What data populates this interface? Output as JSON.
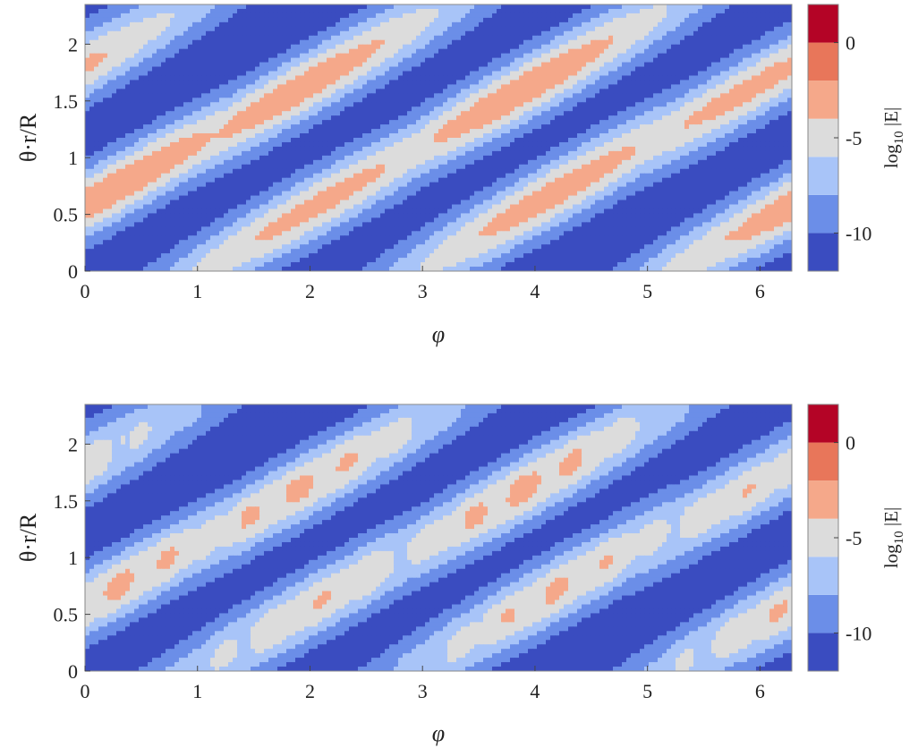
{
  "chart_data": [
    {
      "type": "heatmap",
      "subtype": "filled-contour",
      "title": "",
      "xlabel": "φ",
      "ylabel": "θ·r/R",
      "xlim": [
        0,
        6.2832
      ],
      "ylim": [
        0,
        2.35
      ],
      "x_ticks": [
        0,
        1,
        2,
        3,
        4,
        5,
        6
      ],
      "x_tick_labels": [
        "0",
        "1",
        "2",
        "3",
        "4",
        "5",
        "6"
      ],
      "y_ticks": [
        0,
        0.5,
        1,
        1.5,
        2
      ],
      "y_tick_labels": [
        "0",
        "0.5",
        "1",
        "1.5",
        "2"
      ],
      "colorbar": {
        "label": "log₁₀ |E|",
        "label_base": "log",
        "label_sub": "10",
        "label_tail": " |E|",
        "range": [
          -12,
          2
        ],
        "ticks": [
          0,
          -5,
          -10
        ],
        "tick_labels": [
          "0",
          "-5",
          "-10"
        ],
        "levels": [
          -12,
          -10,
          -8,
          -6,
          -4,
          -2,
          0,
          2
        ],
        "colors": [
          "#3a4cc0",
          "#6b8ee8",
          "#a8c4f8",
          "#dcdcdc",
          "#f5a88a",
          "#e8765a",
          "#b40426"
        ]
      },
      "field": {
        "description": "diagonal bands; level is log10|E|",
        "bands": [
          {
            "phi0": 0.3,
            "theta0": 0.75,
            "slope": 0.55,
            "peak": -2.2
          },
          {
            "phi0": 1.9,
            "theta0": 1.6,
            "slope": 0.55,
            "peak": -2.6
          },
          {
            "phi0": 2.1,
            "theta0": 0.6,
            "slope": 0.55,
            "peak": -3.2
          },
          {
            "phi0": 3.9,
            "theta0": 1.6,
            "slope": 0.55,
            "peak": -2.4
          },
          {
            "phi0": 4.2,
            "theta0": 0.7,
            "slope": 0.55,
            "peak": -2.8
          },
          {
            "phi0": 5.9,
            "theta0": 1.6,
            "slope": 0.55,
            "peak": -3.2
          },
          {
            "phi0": 6.2,
            "theta0": 0.55,
            "slope": 0.55,
            "peak": -3.4
          },
          {
            "phi0": -0.1,
            "theta0": 1.8,
            "slope": 0.55,
            "peak": -5.2
          }
        ],
        "background": -11.5
      }
    },
    {
      "type": "heatmap",
      "subtype": "filled-contour",
      "title": "",
      "xlabel": "φ",
      "ylabel": "θ·r/R",
      "xlim": [
        0,
        6.2832
      ],
      "ylim": [
        0,
        2.35
      ],
      "x_ticks": [
        0,
        1,
        2,
        3,
        4,
        5,
        6
      ],
      "x_tick_labels": [
        "0",
        "1",
        "2",
        "3",
        "4",
        "5",
        "6"
      ],
      "y_ticks": [
        0,
        0.5,
        1,
        1.5,
        2
      ],
      "y_tick_labels": [
        "0",
        "0.5",
        "1",
        "1.5",
        "2"
      ],
      "colorbar": {
        "label": "log₁₀ |E|",
        "label_base": "log",
        "label_sub": "10",
        "label_tail": " |E|",
        "range": [
          -12,
          2
        ],
        "ticks": [
          0,
          -5,
          -10
        ],
        "tick_labels": [
          "0",
          "-5",
          "-10"
        ],
        "levels": [
          -12,
          -10,
          -8,
          -6,
          -4,
          -2,
          0,
          2
        ],
        "colors": [
          "#3a4cc0",
          "#6b8ee8",
          "#a8c4f8",
          "#dcdcdc",
          "#f5a88a",
          "#e8765a",
          "#b40426"
        ]
      },
      "field": {
        "description": "diagonal bands of beads; level is log10|E|",
        "bands": [
          {
            "phi0": 0.3,
            "theta0": 0.75,
            "slope": 0.55,
            "peak": -3.0
          },
          {
            "phi0": 1.9,
            "theta0": 1.6,
            "slope": 0.55,
            "peak": -3.0
          },
          {
            "phi0": 2.1,
            "theta0": 0.62,
            "slope": 0.55,
            "peak": -3.6
          },
          {
            "phi0": 3.9,
            "theta0": 1.6,
            "slope": 0.55,
            "peak": -2.8
          },
          {
            "phi0": 4.2,
            "theta0": 0.72,
            "slope": 0.55,
            "peak": -3.2
          },
          {
            "phi0": 5.9,
            "theta0": 1.6,
            "slope": 0.55,
            "peak": -3.8
          },
          {
            "phi0": 6.2,
            "theta0": 0.55,
            "slope": 0.55,
            "peak": -3.8
          },
          {
            "phi0": -0.1,
            "theta0": 1.8,
            "slope": 0.55,
            "peak": -5.6
          }
        ],
        "background": -11.5
      }
    }
  ]
}
